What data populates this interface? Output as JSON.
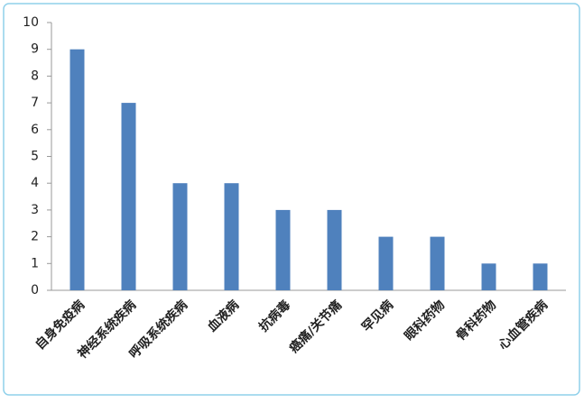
{
  "chart_data": {
    "type": "bar",
    "categories": [
      "自身免疫病",
      "神经系统疾病",
      "呼吸系统疾病",
      "血液病",
      "抗病毒",
      "癌痛/关节痛",
      "罕见病",
      "眼科药物",
      "骨科药物",
      "心血管疾病"
    ],
    "values": [
      9,
      7,
      4,
      4,
      3,
      3,
      2,
      2,
      1,
      1
    ],
    "color": "#4f81bd",
    "ylim": [
      0,
      10
    ],
    "yticks": [
      0,
      1,
      2,
      3,
      4,
      5,
      6,
      7,
      8,
      9,
      10
    ],
    "grid": false
  }
}
